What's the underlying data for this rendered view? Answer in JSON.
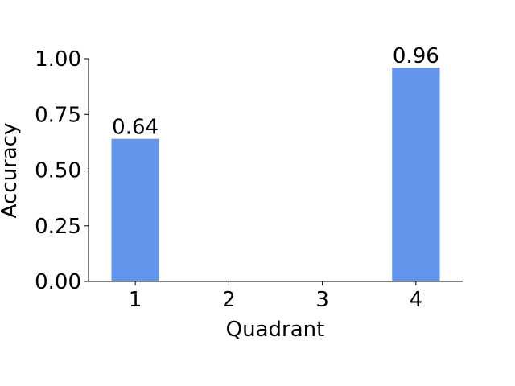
{
  "chart_data": {
    "type": "bar",
    "categories": [
      "1",
      "2",
      "3",
      "4"
    ],
    "values": [
      0.64,
      null,
      null,
      0.96
    ],
    "color": "#6495ed",
    "xlabel": "Quadrant",
    "ylabel": "Accuracy",
    "ylim": [
      0,
      1.0
    ],
    "yticks": [
      {
        "value": 0,
        "label": "0.00"
      },
      {
        "value": 0.25,
        "label": "0.25"
      },
      {
        "value": 0.5,
        "label": "0.50"
      },
      {
        "value": 0.75,
        "label": "0.75"
      },
      {
        "value": 1.0,
        "label": "1.00"
      }
    ],
    "grid": false
  }
}
